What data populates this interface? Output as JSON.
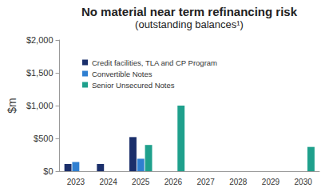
{
  "chart_data": {
    "type": "bar",
    "title": "No material near term refinancing risk",
    "subtitle": "(outstanding balances¹)",
    "y_label": "$m",
    "categories": [
      "2023",
      "2024",
      "2025",
      "2026",
      "2027",
      "2028",
      "2029",
      "2030"
    ],
    "series": [
      {
        "name": "Credit facilities, TLA and CP Program",
        "color": "#1b2f6b",
        "values": [
          110,
          110,
          520,
          null,
          null,
          null,
          null,
          null
        ]
      },
      {
        "name": "Convertible Notes",
        "color": "#2f7fd1",
        "values": [
          140,
          null,
          190,
          null,
          null,
          null,
          null,
          null
        ]
      },
      {
        "name": "Senior Unsecured Notes",
        "color": "#1fa08c",
        "values": [
          null,
          null,
          400,
          1000,
          null,
          null,
          null,
          370
        ]
      }
    ],
    "ylim": [
      0,
      2000
    ],
    "yticks": [
      {
        "value": 0,
        "label": "$0"
      },
      {
        "value": 500,
        "label": "$500"
      },
      {
        "value": 1000,
        "label": "$1,000"
      },
      {
        "value": 1500,
        "label": "$1,500"
      },
      {
        "value": 2000,
        "label": "$2,000"
      }
    ],
    "grid": false,
    "legend": "upper left"
  }
}
